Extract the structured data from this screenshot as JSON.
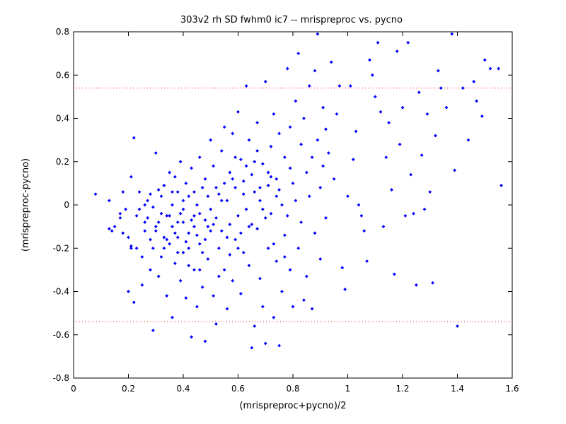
{
  "chart_data": {
    "type": "scatter",
    "title": "303v2 rh SD fwhm0 ic7 -- mrispreproc vs. pycno",
    "xlabel": "(mrispreproc+pycno)/2",
    "ylabel": "(mrispreproc-pycno)",
    "xlim": [
      0,
      1.6
    ],
    "ylim": [
      -0.8,
      0.8
    ],
    "x_ticks": [
      "0",
      "0.2",
      "0.4",
      "0.6",
      "0.8",
      "1",
      "1.2",
      "1.4",
      "1.6"
    ],
    "y_ticks": [
      "-0.8",
      "-0.6",
      "-0.4",
      "-0.2",
      "0",
      "0.2",
      "0.4",
      "0.6",
      "0.8"
    ],
    "x_tick_values": [
      0,
      0.2,
      0.4,
      0.6,
      0.8,
      1.0,
      1.2,
      1.4,
      1.6
    ],
    "y_tick_values": [
      -0.8,
      -0.6,
      -0.4,
      -0.2,
      0,
      0.2,
      0.4,
      0.6,
      0.8
    ],
    "grid": false,
    "reference_lines": [
      {
        "y": 0.54,
        "style": "dotted",
        "color": "#ff0000"
      },
      {
        "y": -0.54,
        "style": "dotted",
        "color": "#ff0000"
      }
    ],
    "marker_color": "#0000ff",
    "points": [
      [
        0.08,
        0.05
      ],
      [
        0.13,
        0.02
      ],
      [
        0.13,
        -0.11
      ],
      [
        0.14,
        -0.12
      ],
      [
        0.15,
        -0.1
      ],
      [
        0.17,
        -0.04
      ],
      [
        0.17,
        -0.06
      ],
      [
        0.18,
        0.06
      ],
      [
        0.19,
        -0.02
      ],
      [
        0.18,
        -0.13
      ],
      [
        0.2,
        -0.15
      ],
      [
        0.2,
        -0.4
      ],
      [
        0.21,
        -0.19
      ],
      [
        0.21,
        0.13
      ],
      [
        0.22,
        0.31
      ],
      [
        0.22,
        -0.45
      ],
      [
        0.23,
        -0.2
      ],
      [
        0.24,
        0.06
      ],
      [
        0.24,
        -0.02
      ],
      [
        0.25,
        -0.24
      ],
      [
        0.25,
        -0.37
      ],
      [
        0.26,
        -0.12
      ],
      [
        0.26,
        -0.08
      ],
      [
        0.27,
        0.02
      ],
      [
        0.27,
        -0.06
      ],
      [
        0.28,
        -0.3
      ],
      [
        0.28,
        0.05
      ],
      [
        0.29,
        -0.58
      ],
      [
        0.29,
        -0.2
      ],
      [
        0.29,
        -0.01
      ],
      [
        0.3,
        0.24
      ],
      [
        0.3,
        -0.1
      ],
      [
        0.31,
        -0.33
      ],
      [
        0.31,
        0.07
      ],
      [
        0.32,
        -0.24
      ],
      [
        0.32,
        0.04
      ],
      [
        0.33,
        -0.15
      ],
      [
        0.33,
        0.09
      ],
      [
        0.34,
        -0.05
      ],
      [
        0.34,
        -0.42
      ],
      [
        0.35,
        0.15
      ],
      [
        0.35,
        -0.18
      ],
      [
        0.36,
        0.0
      ],
      [
        0.36,
        -0.52
      ],
      [
        0.37,
        -0.27
      ],
      [
        0.37,
        0.13
      ],
      [
        0.38,
        0.06
      ],
      [
        0.38,
        -0.08
      ],
      [
        0.39,
        -0.35
      ],
      [
        0.39,
        0.2
      ],
      [
        0.4,
        -0.02
      ],
      [
        0.4,
        -0.22
      ],
      [
        0.41,
        0.1
      ],
      [
        0.41,
        -0.43
      ],
      [
        0.42,
        0.04
      ],
      [
        0.42,
        -0.13
      ],
      [
        0.43,
        -0.61
      ],
      [
        0.43,
        0.17
      ],
      [
        0.44,
        -0.05
      ],
      [
        0.44,
        -0.3
      ],
      [
        0.45,
        0.0
      ],
      [
        0.45,
        -0.47
      ],
      [
        0.46,
        0.22
      ],
      [
        0.46,
        -0.18
      ],
      [
        0.47,
        0.08
      ],
      [
        0.47,
        -0.38
      ],
      [
        0.48,
        -0.63
      ],
      [
        0.48,
        0.12
      ],
      [
        0.49,
        -0.1
      ],
      [
        0.49,
        -0.25
      ],
      [
        0.5,
        0.3
      ],
      [
        0.5,
        -0.02
      ],
      [
        0.51,
        -0.42
      ],
      [
        0.51,
        0.18
      ],
      [
        0.52,
        -0.06
      ],
      [
        0.52,
        -0.55
      ],
      [
        0.53,
        0.05
      ],
      [
        0.53,
        -0.2
      ],
      [
        0.54,
        0.25
      ],
      [
        0.54,
        -0.12
      ],
      [
        0.55,
        0.36
      ],
      [
        0.55,
        -0.3
      ],
      [
        0.56,
        0.02
      ],
      [
        0.56,
        -0.48
      ],
      [
        0.57,
        0.15
      ],
      [
        0.57,
        -0.09
      ],
      [
        0.58,
        0.33
      ],
      [
        0.58,
        -0.35
      ],
      [
        0.59,
        0.08
      ],
      [
        0.59,
        -0.16
      ],
      [
        0.6,
        0.43
      ],
      [
        0.6,
        -0.05
      ],
      [
        0.61,
        0.21
      ],
      [
        0.61,
        -0.41
      ],
      [
        0.62,
        0.11
      ],
      [
        0.62,
        -0.22
      ],
      [
        0.63,
        0.55
      ],
      [
        0.63,
        -0.02
      ],
      [
        0.64,
        0.3
      ],
      [
        0.64,
        -0.28
      ],
      [
        0.65,
        -0.66
      ],
      [
        0.65,
        0.14
      ],
      [
        0.66,
        0.06
      ],
      [
        0.66,
        -0.56
      ],
      [
        0.67,
        0.38
      ],
      [
        0.67,
        -0.11
      ],
      [
        0.68,
        0.02
      ],
      [
        0.68,
        -0.34
      ],
      [
        0.69,
        0.19
      ],
      [
        0.69,
        -0.47
      ],
      [
        0.7,
        0.57
      ],
      [
        0.7,
        -0.64
      ],
      [
        0.71,
        0.09
      ],
      [
        0.71,
        -0.2
      ],
      [
        0.72,
        0.27
      ],
      [
        0.72,
        -0.04
      ],
      [
        0.73,
        0.42
      ],
      [
        0.73,
        -0.52
      ],
      [
        0.74,
        0.12
      ],
      [
        0.74,
        -0.26
      ],
      [
        0.75,
        -0.65
      ],
      [
        0.75,
        0.33
      ],
      [
        0.76,
        0.0
      ],
      [
        0.76,
        -0.4
      ],
      [
        0.77,
        0.22
      ],
      [
        0.77,
        -0.14
      ],
      [
        0.78,
        0.63
      ],
      [
        0.78,
        -0.05
      ],
      [
        0.79,
        0.36
      ],
      [
        0.79,
        -0.3
      ],
      [
        0.8,
        0.1
      ],
      [
        0.8,
        -0.47
      ],
      [
        0.81,
        0.48
      ],
      [
        0.81,
        0.02
      ],
      [
        0.82,
        0.7
      ],
      [
        0.82,
        -0.2
      ],
      [
        0.83,
        0.28
      ],
      [
        0.83,
        -0.08
      ],
      [
        0.84,
        0.4
      ],
      [
        0.84,
        -0.44
      ],
      [
        0.85,
        0.15
      ],
      [
        0.85,
        -0.33
      ],
      [
        0.86,
        0.55
      ],
      [
        0.86,
        0.04
      ],
      [
        0.87,
        0.22
      ],
      [
        0.87,
        -0.48
      ],
      [
        0.88,
        0.62
      ],
      [
        0.88,
        -0.13
      ],
      [
        0.89,
        0.79
      ],
      [
        0.89,
        0.3
      ],
      [
        0.9,
        0.08
      ],
      [
        0.9,
        -0.25
      ],
      [
        0.91,
        0.45
      ],
      [
        0.91,
        0.18
      ],
      [
        0.92,
        -0.06
      ],
      [
        0.92,
        0.35
      ],
      [
        0.93,
        0.24
      ],
      [
        0.94,
        0.66
      ],
      [
        0.95,
        0.12
      ],
      [
        0.96,
        0.42
      ],
      [
        0.97,
        0.55
      ],
      [
        0.98,
        -0.29
      ],
      [
        0.99,
        -0.39
      ],
      [
        1.0,
        0.04
      ],
      [
        1.01,
        0.55
      ],
      [
        1.02,
        0.21
      ],
      [
        1.03,
        0.34
      ],
      [
        1.04,
        0.0
      ],
      [
        1.05,
        -0.05
      ],
      [
        1.06,
        -0.12
      ],
      [
        1.07,
        -0.26
      ],
      [
        1.08,
        0.67
      ],
      [
        1.09,
        0.6
      ],
      [
        1.1,
        0.5
      ],
      [
        1.11,
        0.75
      ],
      [
        1.12,
        0.43
      ],
      [
        1.13,
        -0.1
      ],
      [
        1.14,
        0.22
      ],
      [
        1.15,
        0.38
      ],
      [
        1.16,
        0.07
      ],
      [
        1.17,
        -0.32
      ],
      [
        1.18,
        0.71
      ],
      [
        1.19,
        0.28
      ],
      [
        1.2,
        0.45
      ],
      [
        1.21,
        -0.05
      ],
      [
        1.22,
        0.75
      ],
      [
        1.23,
        0.14
      ],
      [
        1.24,
        -0.04
      ],
      [
        1.25,
        -0.37
      ],
      [
        1.26,
        0.52
      ],
      [
        1.27,
        0.23
      ],
      [
        1.28,
        -0.02
      ],
      [
        1.29,
        0.42
      ],
      [
        1.3,
        0.06
      ],
      [
        1.31,
        -0.36
      ],
      [
        1.32,
        0.32
      ],
      [
        1.33,
        0.62
      ],
      [
        1.34,
        0.54
      ],
      [
        1.36,
        0.45
      ],
      [
        1.38,
        0.79
      ],
      [
        1.39,
        0.16
      ],
      [
        1.4,
        -0.56
      ],
      [
        1.42,
        0.54
      ],
      [
        1.44,
        0.3
      ],
      [
        1.46,
        0.57
      ],
      [
        1.47,
        0.48
      ],
      [
        1.49,
        0.41
      ],
      [
        1.5,
        0.67
      ],
      [
        1.52,
        0.63
      ],
      [
        1.55,
        0.63
      ],
      [
        1.56,
        0.09
      ],
      [
        0.21,
        -0.2
      ],
      [
        0.23,
        -0.05
      ],
      [
        0.26,
        0.0
      ],
      [
        0.28,
        -0.16
      ],
      [
        0.31,
        -0.08
      ],
      [
        0.33,
        -0.2
      ],
      [
        0.35,
        -0.05
      ],
      [
        0.37,
        -0.13
      ],
      [
        0.39,
        -0.04
      ],
      [
        0.41,
        -0.17
      ],
      [
        0.43,
        -0.07
      ],
      [
        0.45,
        -0.14
      ],
      [
        0.47,
        -0.22
      ],
      [
        0.49,
        0.04
      ],
      [
        0.51,
        -0.09
      ],
      [
        0.53,
        -0.33
      ],
      [
        0.55,
        0.1
      ],
      [
        0.57,
        -0.23
      ],
      [
        0.59,
        0.22
      ],
      [
        0.61,
        -0.13
      ],
      [
        0.63,
        0.18
      ],
      [
        0.65,
        -0.09
      ],
      [
        0.67,
        0.25
      ],
      [
        0.69,
        -0.02
      ],
      [
        0.71,
        0.15
      ],
      [
        0.73,
        -0.18
      ],
      [
        0.75,
        0.07
      ],
      [
        0.77,
        -0.24
      ],
      [
        0.79,
        0.17
      ],
      [
        0.36,
        -0.1
      ],
      [
        0.38,
        -0.15
      ],
      [
        0.4,
        -0.08
      ],
      [
        0.42,
        -0.2
      ],
      [
        0.44,
        -0.1
      ],
      [
        0.46,
        -0.04
      ],
      [
        0.48,
        -0.16
      ],
      [
        0.5,
        -0.12
      ],
      [
        0.52,
        0.08
      ],
      [
        0.54,
        0.02
      ],
      [
        0.56,
        -0.15
      ],
      [
        0.58,
        0.12
      ],
      [
        0.6,
        -0.2
      ],
      [
        0.62,
        0.05
      ],
      [
        0.64,
        -0.1
      ],
      [
        0.66,
        0.2
      ],
      [
        0.68,
        0.08
      ],
      [
        0.7,
        -0.06
      ],
      [
        0.72,
        0.13
      ],
      [
        0.74,
        0.04
      ],
      [
        0.3,
        -0.12
      ],
      [
        0.32,
        -0.04
      ],
      [
        0.34,
        -0.16
      ],
      [
        0.36,
        0.06
      ],
      [
        0.38,
        -0.22
      ],
      [
        0.4,
        0.02
      ],
      [
        0.42,
        -0.28
      ],
      [
        0.44,
        0.06
      ],
      [
        0.46,
        -0.3
      ],
      [
        0.48,
        -0.07
      ]
    ]
  }
}
